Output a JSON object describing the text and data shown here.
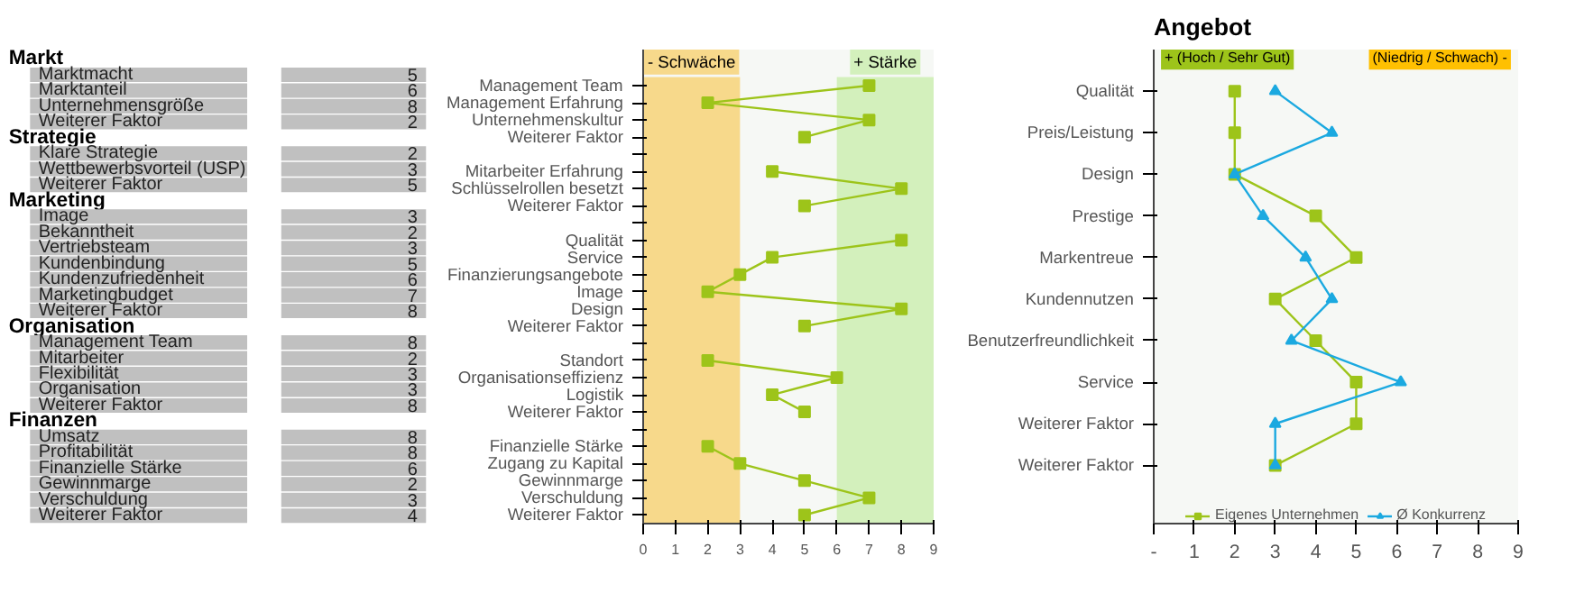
{
  "chart_data": [
    {
      "type": "other",
      "data_labels": true,
      "categories": [
        "Markt",
        "Marktmacht",
        "Marktanteil",
        "Unternehmensgröße",
        "Weiterer Faktor",
        "Strategie",
        "Klare Strategie",
        "Wettbewerbsvorteil (USP)",
        "Weiterer Faktor",
        "Marketing",
        "Image",
        "Bekanntheit",
        "Vertriebsteam",
        "Kundenbindung",
        "Kundenzufriedenheit",
        "Marketingbudget",
        "Weiterer Faktor",
        "Organisation",
        "Management Team",
        "Mitarbeiter",
        "Flexibilität",
        "Organisation",
        "Weiterer Faktor",
        "Finanzen",
        "Umsatz",
        "Profitabilität",
        "Finanzielle Stärke",
        "Gewinnmarge",
        "Verschuldung",
        "Weiterer Faktor"
      ],
      "values": [
        null,
        5,
        6,
        8,
        2,
        null,
        2,
        3,
        5,
        null,
        3,
        2,
        3,
        5,
        6,
        7,
        8,
        null,
        8,
        2,
        3,
        3,
        8,
        null,
        8,
        8,
        6,
        2,
        3,
        4
      ]
    },
    {
      "type": "line",
      "orientation": "horizontal",
      "marker": "square",
      "grid": false,
      "categories": [
        "Management Team",
        "Management Erfahrung",
        "Unternehmenskultur",
        "Weiterer Faktor",
        null,
        "Mitarbeiter Erfahrung",
        "Schlüsselrollen besetzt",
        "Weiterer Faktor",
        null,
        "Qualität",
        "Service",
        "Finanzierungsangebote",
        "Image",
        "Design",
        "Weiterer Faktor",
        null,
        "Standort",
        "Organisationseffizienz",
        "Logistik",
        "Weiterer Faktor",
        null,
        "Finanzielle Stärke",
        "Zugang zu Kapital",
        "Gewinnmarge",
        "Verschuldung",
        "Weiterer Faktor"
      ],
      "series": [
        {
          "color": "#9dc41a",
          "values": [
            7,
            2,
            7,
            5,
            null,
            4,
            8,
            5,
            null,
            8,
            4,
            3,
            2,
            8,
            5,
            null,
            2,
            6,
            4,
            5,
            null,
            2,
            3,
            5,
            7,
            5
          ]
        }
      ],
      "xlim": [
        0,
        9
      ],
      "xticks": [
        0,
        1,
        2,
        3,
        4,
        5,
        6,
        7,
        8,
        9
      ],
      "bands": [
        {
          "axis": "x",
          "from": 0,
          "to": 3,
          "label": "- Schwäche",
          "color": "#f7d98b"
        },
        {
          "axis": "x",
          "from": 6,
          "to": 9,
          "label": "+ Stärke",
          "color": "#d3f0bc"
        }
      ]
    },
    {
      "type": "line",
      "orientation": "horizontal",
      "title": "Angebot",
      "grid": false,
      "legend": "bottom",
      "annotations": [
        "+ (Hoch / Sehr Gut)",
        "(Niedrig / Schwach) -"
      ],
      "categories": [
        "Qualität",
        "Preis/Leistung",
        "Design",
        "Prestige",
        "Markentreue",
        "Kundennutzen",
        "Benutzerfreundlichkeit",
        "Service",
        "Weiterer Faktor",
        "Weiterer Faktor"
      ],
      "series": [
        {
          "name": "Eigenes Unternehmen",
          "color": "#9dc41a",
          "marker": "square",
          "values": [
            2,
            2,
            2,
            4,
            5,
            3,
            4,
            5,
            5,
            3
          ]
        },
        {
          "name": "Ø Konkurrenz",
          "color": "#1ba9e0",
          "marker": "triangle",
          "values": [
            3,
            4.4,
            2,
            2.7,
            3.75,
            4.4,
            3.4,
            6.1,
            3,
            3
          ]
        }
      ],
      "xlim": [
        0,
        9
      ],
      "xticks": [
        {
          "value": 0,
          "label": "-"
        },
        1,
        2,
        3,
        4,
        5,
        6,
        7,
        8,
        9
      ]
    }
  ]
}
